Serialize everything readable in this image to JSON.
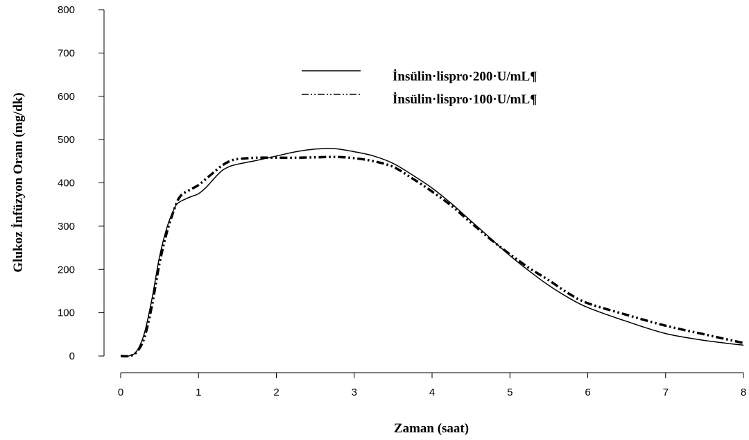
{
  "chart_data": {
    "type": "line",
    "title": "",
    "xlabel": "Zaman (saat)",
    "ylabel": "Glukoz İnfüzyon Oranı (mg/dk)",
    "xlim": [
      0,
      8
    ],
    "ylim": [
      0,
      800
    ],
    "xticks": [
      "0",
      "1",
      "2",
      "3",
      "4",
      "5",
      "6",
      "7",
      "8"
    ],
    "yticks": [
      "0",
      "100",
      "200",
      "300",
      "400",
      "500",
      "600",
      "700",
      "800"
    ],
    "grid": false,
    "legend_position": "top-right",
    "series": [
      {
        "name": "İnsülin·lispro·200·U/mL¶",
        "line_style": "solid",
        "color": "#000000",
        "x": [
          0.0,
          0.1,
          0.2,
          0.3,
          0.4,
          0.5,
          0.6,
          0.7,
          0.75,
          0.8,
          0.9,
          1.0,
          1.1,
          1.2,
          1.3,
          1.4,
          1.5,
          1.75,
          2.0,
          2.25,
          2.5,
          2.75,
          3.0,
          3.25,
          3.5,
          3.75,
          4.0,
          4.25,
          4.5,
          4.75,
          5.0,
          5.25,
          5.5,
          5.75,
          6.0,
          6.5,
          7.0,
          7.5,
          8.0
        ],
        "y": [
          0,
          0,
          10,
          50,
          130,
          230,
          300,
          345,
          355,
          360,
          368,
          375,
          390,
          410,
          428,
          438,
          443,
          452,
          462,
          472,
          478,
          479,
          472,
          462,
          445,
          418,
          388,
          352,
          312,
          272,
          232,
          196,
          163,
          135,
          112,
          80,
          52,
          36,
          25
        ]
      },
      {
        "name": "İnsülin·lispro·100·U/mL¶",
        "line_style": "dash-dot-dot",
        "color": "#000000",
        "x": [
          0.0,
          0.1,
          0.2,
          0.3,
          0.4,
          0.5,
          0.6,
          0.7,
          0.75,
          0.8,
          0.9,
          1.0,
          1.1,
          1.2,
          1.3,
          1.4,
          1.5,
          1.75,
          2.0,
          2.25,
          2.5,
          2.75,
          3.0,
          3.25,
          3.5,
          3.75,
          4.0,
          4.25,
          4.5,
          4.75,
          5.0,
          5.25,
          5.5,
          5.75,
          6.0,
          6.5,
          7.0,
          7.5,
          8.0
        ],
        "y": [
          0,
          0,
          8,
          40,
          115,
          215,
          290,
          345,
          365,
          375,
          385,
          395,
          410,
          425,
          440,
          450,
          455,
          458,
          458,
          458,
          459,
          460,
          457,
          450,
          437,
          410,
          380,
          347,
          308,
          270,
          235,
          203,
          175,
          145,
          122,
          95,
          70,
          50,
          30
        ]
      }
    ]
  }
}
